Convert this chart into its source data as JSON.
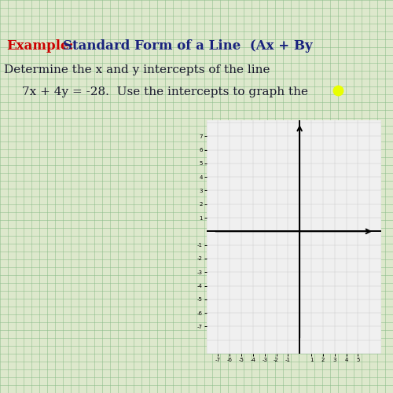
{
  "bg_color": "#dde8cc",
  "graph_bg": "#f0f0f0",
  "title_example_color": "#cc0000",
  "title_main_color": "#1a237e",
  "body_text_color": "#1a1a2e",
  "highlight_color": "#e8ff00",
  "title_example": "Example:",
  "title_main": "Standard Form of a Line  (Ax + By",
  "line1": "Determine the x and y intercepts of the line",
  "line2": "7x + 4y = -28.  Use the intercepts to graph the",
  "axis_xlim": [
    -7.5,
    6.5
  ],
  "axis_ylim": [
    -8.2,
    8.2
  ],
  "xticks": [
    -7,
    -6,
    -5,
    -4,
    -3,
    -2,
    -1,
    1,
    2,
    3,
    4,
    5
  ],
  "yticks": [
    -7,
    -6,
    -5,
    -4,
    -3,
    -2,
    -1,
    1,
    2,
    3,
    4,
    5,
    6,
    7
  ],
  "top_bar_color": "#111111",
  "grid_color_bg": "#88bb88",
  "grid_color_inner": "#cccccc"
}
